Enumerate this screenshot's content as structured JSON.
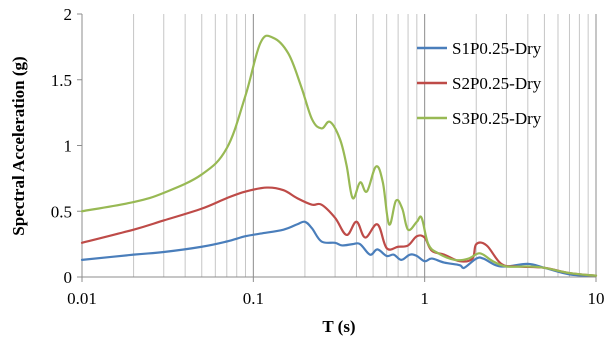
{
  "chart_data": {
    "type": "line",
    "title": "",
    "xlabel": "T (s)",
    "ylabel": "Spectral Acceleration (g)",
    "xscale": "log",
    "xlim": [
      0.01,
      10
    ],
    "ylim": [
      0,
      2
    ],
    "x_ticks": [
      0.01,
      0.1,
      1,
      10
    ],
    "x_tick_labels": [
      "0.01",
      "0.1",
      "1",
      "10"
    ],
    "y_ticks": [
      0,
      0.5,
      1,
      1.5,
      2
    ],
    "y_tick_labels": [
      "0",
      "0.5",
      "1",
      "1.5",
      "2"
    ],
    "grid": "vertical major and minor gridlines",
    "legend_position": "right",
    "series": [
      {
        "name": "S1P0.25-Dry",
        "color": "#4a7ebb",
        "points": [
          [
            0.01,
            0.13
          ],
          [
            0.02,
            0.17
          ],
          [
            0.03,
            0.19
          ],
          [
            0.05,
            0.23
          ],
          [
            0.07,
            0.27
          ],
          [
            0.09,
            0.31
          ],
          [
            0.11,
            0.33
          ],
          [
            0.15,
            0.36
          ],
          [
            0.18,
            0.4
          ],
          [
            0.2,
            0.42
          ],
          [
            0.22,
            0.37
          ],
          [
            0.25,
            0.27
          ],
          [
            0.3,
            0.26
          ],
          [
            0.33,
            0.24
          ],
          [
            0.38,
            0.25
          ],
          [
            0.42,
            0.25
          ],
          [
            0.48,
            0.17
          ],
          [
            0.53,
            0.21
          ],
          [
            0.6,
            0.16
          ],
          [
            0.66,
            0.17
          ],
          [
            0.73,
            0.13
          ],
          [
            0.82,
            0.17
          ],
          [
            0.9,
            0.16
          ],
          [
            1.0,
            0.12
          ],
          [
            1.1,
            0.14
          ],
          [
            1.3,
            0.11
          ],
          [
            1.6,
            0.09
          ],
          [
            1.7,
            0.07
          ],
          [
            2.0,
            0.14
          ],
          [
            2.2,
            0.14
          ],
          [
            2.6,
            0.09
          ],
          [
            3.0,
            0.08
          ],
          [
            4.0,
            0.1
          ],
          [
            5.0,
            0.07
          ],
          [
            7.0,
            0.02
          ],
          [
            10.0,
            0.01
          ]
        ]
      },
      {
        "name": "S2P0.25-Dry",
        "color": "#be4b48",
        "points": [
          [
            0.01,
            0.26
          ],
          [
            0.02,
            0.36
          ],
          [
            0.03,
            0.43
          ],
          [
            0.05,
            0.52
          ],
          [
            0.07,
            0.6
          ],
          [
            0.09,
            0.65
          ],
          [
            0.12,
            0.68
          ],
          [
            0.15,
            0.66
          ],
          [
            0.18,
            0.6
          ],
          [
            0.22,
            0.55
          ],
          [
            0.25,
            0.55
          ],
          [
            0.3,
            0.45
          ],
          [
            0.35,
            0.32
          ],
          [
            0.4,
            0.42
          ],
          [
            0.45,
            0.3
          ],
          [
            0.53,
            0.4
          ],
          [
            0.6,
            0.22
          ],
          [
            0.7,
            0.23
          ],
          [
            0.8,
            0.24
          ],
          [
            0.9,
            0.31
          ],
          [
            1.0,
            0.3
          ],
          [
            1.1,
            0.2
          ],
          [
            1.3,
            0.17
          ],
          [
            1.6,
            0.12
          ],
          [
            1.9,
            0.14
          ],
          [
            2.0,
            0.25
          ],
          [
            2.3,
            0.24
          ],
          [
            2.8,
            0.1
          ],
          [
            3.5,
            0.08
          ],
          [
            5.0,
            0.07
          ],
          [
            7.0,
            0.03
          ],
          [
            10.0,
            0.01
          ]
        ]
      },
      {
        "name": "S3P0.25-Dry",
        "color": "#98b954",
        "points": [
          [
            0.01,
            0.5
          ],
          [
            0.02,
            0.57
          ],
          [
            0.03,
            0.64
          ],
          [
            0.05,
            0.78
          ],
          [
            0.07,
            0.98
          ],
          [
            0.09,
            1.38
          ],
          [
            0.11,
            1.78
          ],
          [
            0.13,
            1.82
          ],
          [
            0.16,
            1.7
          ],
          [
            0.19,
            1.45
          ],
          [
            0.22,
            1.2
          ],
          [
            0.25,
            1.13
          ],
          [
            0.28,
            1.18
          ],
          [
            0.32,
            1.05
          ],
          [
            0.35,
            0.85
          ],
          [
            0.38,
            0.6
          ],
          [
            0.42,
            0.72
          ],
          [
            0.46,
            0.65
          ],
          [
            0.52,
            0.84
          ],
          [
            0.57,
            0.72
          ],
          [
            0.62,
            0.4
          ],
          [
            0.68,
            0.58
          ],
          [
            0.74,
            0.52
          ],
          [
            0.8,
            0.36
          ],
          [
            0.9,
            0.42
          ],
          [
            0.96,
            0.45
          ],
          [
            1.05,
            0.25
          ],
          [
            1.2,
            0.18
          ],
          [
            1.5,
            0.13
          ],
          [
            1.8,
            0.14
          ],
          [
            2.1,
            0.18
          ],
          [
            2.5,
            0.12
          ],
          [
            3.0,
            0.08
          ],
          [
            4.0,
            0.08
          ],
          [
            5.0,
            0.07
          ],
          [
            7.0,
            0.03
          ],
          [
            10.0,
            0.01
          ]
        ]
      }
    ]
  }
}
